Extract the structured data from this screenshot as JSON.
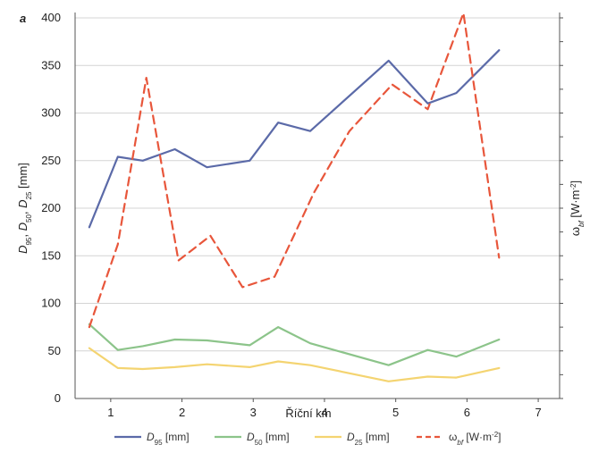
{
  "chart_data": {
    "type": "line",
    "panel_label": "a",
    "xlabel": "Říční km",
    "ylabel_left": {
      "parts": [
        {
          "t": "D",
          "italic": true
        },
        {
          "t": "95",
          "sub": true
        },
        {
          "t": ", "
        },
        {
          "t": "D",
          "italic": true
        },
        {
          "t": "50",
          "sub": true
        },
        {
          "t": ", "
        },
        {
          "t": "D",
          "italic": true
        },
        {
          "t": "25",
          "sub": true
        },
        {
          "t": " [mm]"
        }
      ]
    },
    "ylabel_right": {
      "parts": [
        {
          "t": "ω"
        },
        {
          "t": "bf",
          "sub": true,
          "italic": true
        },
        {
          "t": " [W·m"
        },
        {
          "t": "-2",
          "sup": true
        },
        {
          "t": "]"
        }
      ]
    },
    "x_ticks": [
      1,
      2,
      3,
      4,
      5,
      6,
      7
    ],
    "xlim": [
      0.5,
      7.3
    ],
    "y_ticks": [
      0,
      50,
      100,
      150,
      200,
      250,
      300,
      350,
      400
    ],
    "ylim": [
      0,
      400
    ],
    "grid": true,
    "legend_position": "bottom",
    "series": [
      {
        "key": "d95",
        "legend_parts": [
          {
            "t": "D",
            "italic": true
          },
          {
            "t": "95",
            "sub": true
          },
          {
            "t": " [mm]"
          }
        ],
        "color": "#5b6aa8",
        "dash": "",
        "x": [
          0.7,
          1.1,
          1.45,
          1.9,
          2.35,
          2.95,
          3.35,
          3.8,
          4.9,
          5.45,
          5.85,
          6.45
        ],
        "y": [
          180,
          254,
          250,
          262,
          243,
          250,
          290,
          281,
          355,
          310,
          321,
          366
        ]
      },
      {
        "key": "d50",
        "legend_parts": [
          {
            "t": "D",
            "italic": true
          },
          {
            "t": "50",
            "sub": true
          },
          {
            "t": " [mm]"
          }
        ],
        "color": "#8cc48a",
        "dash": "",
        "x": [
          0.7,
          1.1,
          1.45,
          1.9,
          2.35,
          2.95,
          3.35,
          3.8,
          4.9,
          5.45,
          5.85,
          6.45
        ],
        "y": [
          78,
          51,
          55,
          62,
          61,
          56,
          75,
          58,
          35,
          51,
          44,
          62
        ]
      },
      {
        "key": "d25",
        "legend_parts": [
          {
            "t": "D",
            "italic": true
          },
          {
            "t": "25",
            "sub": true
          },
          {
            "t": " [mm]"
          }
        ],
        "color": "#f4d471",
        "dash": "",
        "x": [
          0.7,
          1.1,
          1.45,
          1.9,
          2.35,
          2.95,
          3.35,
          3.8,
          4.9,
          5.45,
          5.85,
          6.45
        ],
        "y": [
          53,
          32,
          31,
          33,
          36,
          33,
          39,
          35,
          18,
          23,
          22,
          32
        ]
      },
      {
        "key": "wbf",
        "legend_parts": [
          {
            "t": "ω"
          },
          {
            "t": "bf",
            "sub": true,
            "italic": true
          },
          {
            "t": " [W·m"
          },
          {
            "t": "-2",
            "sup": true
          },
          {
            "t": "]"
          }
        ],
        "color": "#e8563b",
        "dash": "9,6",
        "x": [
          0.7,
          1.1,
          1.5,
          1.95,
          2.4,
          2.85,
          3.3,
          3.85,
          4.35,
          4.95,
          5.45,
          5.95,
          6.45
        ],
        "y": [
          75,
          162,
          337,
          145,
          171,
          117,
          128,
          216,
          281,
          330,
          304,
          405,
          148
        ]
      }
    ]
  }
}
